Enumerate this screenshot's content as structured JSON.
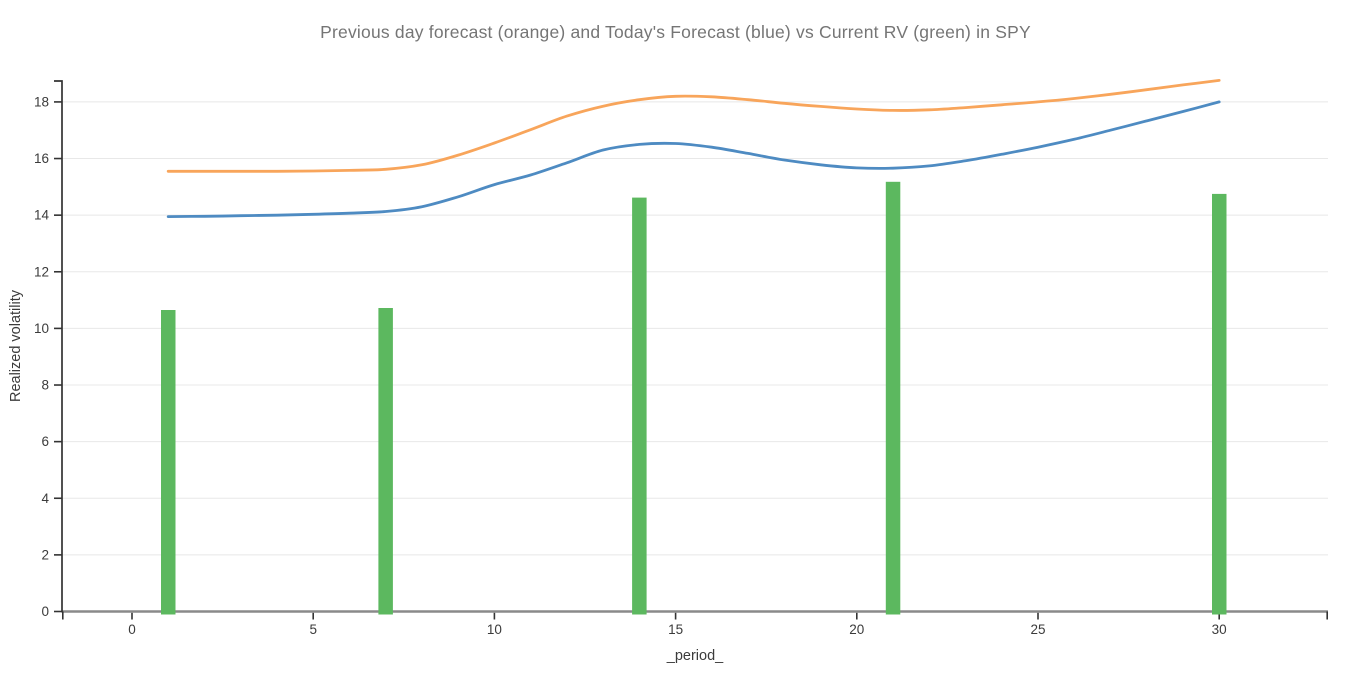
{
  "chart_data": {
    "type": "mixed",
    "title": "Previous day forecast (orange) and Today's Forecast (blue) vs Current RV (green) in SPY",
    "xlabel": "_period_",
    "ylabel": "Realized volatility",
    "xlim": [
      -2,
      33
    ],
    "ylim": [
      0,
      18.7
    ],
    "x_ticks": [
      0,
      5,
      10,
      15,
      20,
      25,
      30
    ],
    "y_ticks": [
      0,
      2,
      4,
      6,
      8,
      10,
      12,
      14,
      16,
      18
    ],
    "grid": "horizontal-only",
    "legend_position": "none (series named in title)",
    "colors": {
      "orange_line": "#f8a55b",
      "blue_line": "#4e8bc2",
      "green_bar": "#5cb85f",
      "gridline": "#e8e8e8",
      "x_axis_line": "#8a8a8a",
      "y_axis_spine": "#333333",
      "tick_mark": "#333333",
      "tick_label": "#3b3b3b",
      "axis_label": "#3b3b3b",
      "title": "#757575"
    },
    "series": [
      {
        "name": "Previous day forecast",
        "type": "line",
        "color_key": "orange_line",
        "points": [
          [
            1,
            15.55
          ],
          [
            2,
            15.55
          ],
          [
            3,
            15.55
          ],
          [
            4,
            15.55
          ],
          [
            5,
            15.56
          ],
          [
            6,
            15.58
          ],
          [
            7,
            15.62
          ],
          [
            8,
            15.78
          ],
          [
            9,
            16.12
          ],
          [
            10,
            16.55
          ],
          [
            11,
            17.02
          ],
          [
            12,
            17.5
          ],
          [
            13,
            17.85
          ],
          [
            14,
            18.08
          ],
          [
            15,
            18.2
          ],
          [
            16,
            18.18
          ],
          [
            17,
            18.08
          ],
          [
            18,
            17.95
          ],
          [
            19,
            17.84
          ],
          [
            20,
            17.75
          ],
          [
            21,
            17.7
          ],
          [
            22,
            17.72
          ],
          [
            23,
            17.8
          ],
          [
            24,
            17.9
          ],
          [
            25,
            18.0
          ],
          [
            26,
            18.12
          ],
          [
            27,
            18.27
          ],
          [
            28,
            18.43
          ],
          [
            29,
            18.6
          ],
          [
            30,
            18.76
          ]
        ]
      },
      {
        "name": "Today's Forecast",
        "type": "line",
        "color_key": "blue_line",
        "points": [
          [
            1,
            13.95
          ],
          [
            2,
            13.96
          ],
          [
            3,
            13.98
          ],
          [
            4,
            14.0
          ],
          [
            5,
            14.03
          ],
          [
            6,
            14.07
          ],
          [
            7,
            14.13
          ],
          [
            8,
            14.3
          ],
          [
            9,
            14.65
          ],
          [
            10,
            15.08
          ],
          [
            11,
            15.42
          ],
          [
            12,
            15.85
          ],
          [
            13,
            16.3
          ],
          [
            14,
            16.5
          ],
          [
            15,
            16.53
          ],
          [
            16,
            16.4
          ],
          [
            17,
            16.18
          ],
          [
            18,
            15.95
          ],
          [
            19,
            15.78
          ],
          [
            20,
            15.67
          ],
          [
            21,
            15.66
          ],
          [
            22,
            15.74
          ],
          [
            23,
            15.92
          ],
          [
            24,
            16.15
          ],
          [
            25,
            16.4
          ],
          [
            26,
            16.68
          ],
          [
            27,
            17.0
          ],
          [
            28,
            17.33
          ],
          [
            29,
            17.66
          ],
          [
            30,
            18.0
          ]
        ]
      },
      {
        "name": "Current RV",
        "type": "bar",
        "color_key": "green_bar",
        "x": [
          1,
          7,
          14,
          21,
          30
        ],
        "values": [
          10.65,
          10.72,
          14.62,
          15.18,
          14.75
        ],
        "bar_width_units": 0.4
      }
    ]
  }
}
